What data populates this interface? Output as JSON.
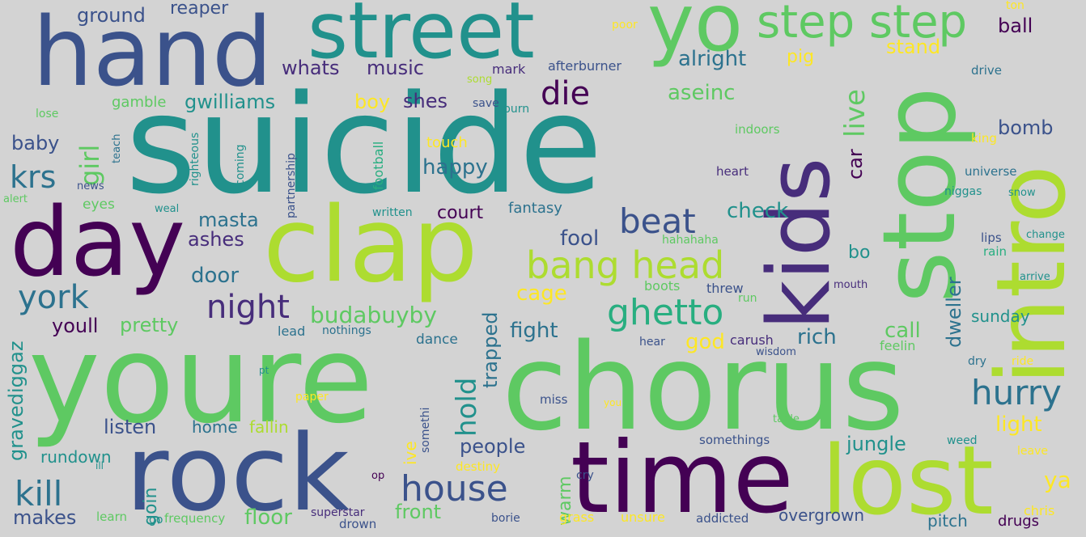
{
  "background": "#d3d3d3",
  "palette": {
    "dark_purple": "#440154",
    "indigo": "#472d7b",
    "slate_blue": "#3b528b",
    "steel_blue": "#2c728e",
    "teal": "#21918c",
    "sea_green": "#28ae80",
    "green": "#5ec962",
    "lime": "#addc30",
    "yellow": "#fde725"
  },
  "words": {
    "hand": "hand",
    "street": "street",
    "yo": "yo",
    "step_step": "step step",
    "suicide": "suicide",
    "kids": "kids",
    "stop": "stop",
    "intro": "intro",
    "day": "day",
    "clap": "clap",
    "youre": "youre",
    "chorus": "chorus",
    "rock": "rock",
    "time": "time",
    "lost": "lost",
    "bang_head": "bang head",
    "beat": "beat",
    "ghetto": "ghetto",
    "night": "night",
    "house": "house",
    "hurry": "hurry",
    "york": "york",
    "krs": "krs",
    "kill": "kill",
    "die": "die",
    "ground": "ground",
    "reaper": "reaper",
    "whats": "whats",
    "music": "music",
    "alright": "alright",
    "pig": "pig",
    "stand": "stand",
    "ball": "ball",
    "ton": "ton",
    "poor": "poor",
    "mark": "mark",
    "afterburner": "afterburner",
    "song": "song",
    "drive": "drive",
    "gamble": "gamble",
    "gwilliams": "gwilliams",
    "boy": "boy",
    "shes": "shes",
    "save": "save",
    "burn": "burn",
    "aseinc": "aseinc",
    "live": "live",
    "lose": "lose",
    "girl": "girl",
    "teach": "teach",
    "righteous": "righteous",
    "coming": "coming",
    "partnership": "partnership",
    "football": "football",
    "touch": "touch",
    "indoors": "indoors",
    "bomb": "bomb",
    "baby": "baby",
    "king": "king",
    "happy": "happy",
    "heart": "heart",
    "car": "car",
    "universe": "universe",
    "news": "news",
    "niggas": "niggas",
    "snow": "snow",
    "alert": "alert",
    "eyes": "eyes",
    "weal": "weal",
    "written": "written",
    "court": "court",
    "fantasy": "fantasy",
    "check": "check",
    "lips": "lips",
    "change": "change",
    "masta": "masta",
    "ashes": "ashes",
    "fool": "fool",
    "hahahaha": "hahahaha",
    "bo": "bo",
    "rain": "rain",
    "door": "door",
    "cage": "cage",
    "boots": "boots",
    "threw": "threw",
    "mouth": "mouth",
    "arrive": "arrive",
    "run": "run",
    "budabuyby": "budabuyby",
    "sunday": "sunday",
    "youll": "youll",
    "pretty": "pretty",
    "lead": "lead",
    "nothings": "nothings",
    "fight": "fight",
    "rich": "rich",
    "call": "call",
    "dweller": "dweller",
    "dance": "dance",
    "trapped": "trapped",
    "god": "god",
    "carush": "carush",
    "wisdom": "wisdom",
    "hear": "hear",
    "feelin": "feelin",
    "gravediggaz": "gravediggaz",
    "hold": "hold",
    "dry": "dry",
    "ride": "ride",
    "pt": "pt",
    "paper": "paper",
    "miss": "miss",
    "you": "you",
    "table": "table",
    "light": "light",
    "listen": "listen",
    "home": "home",
    "fallin": "fallin",
    "somethi": "somethi",
    "somethings": "somethings",
    "weed": "weed",
    "jungle": "jungle",
    "leave": "leave",
    "rundown": "rundown",
    "ill": "ill",
    "ive": "ive",
    "people": "people",
    "destiny": "destiny",
    "cry": "cry",
    "ya": "ya",
    "op": "op",
    "warm": "warm",
    "chris": "chris",
    "goin": "goin",
    "makes": "makes",
    "learn": "learn",
    "frequency": "frequency",
    "floor": "floor",
    "superstar": "superstar",
    "front": "front",
    "drown": "drown",
    "borie": "borie",
    "grass": "grass",
    "unsure": "unsure",
    "addicted": "addicted",
    "overgrown": "overgrown",
    "pitch": "pitch",
    "drugs": "drugs",
    "go": "go"
  }
}
